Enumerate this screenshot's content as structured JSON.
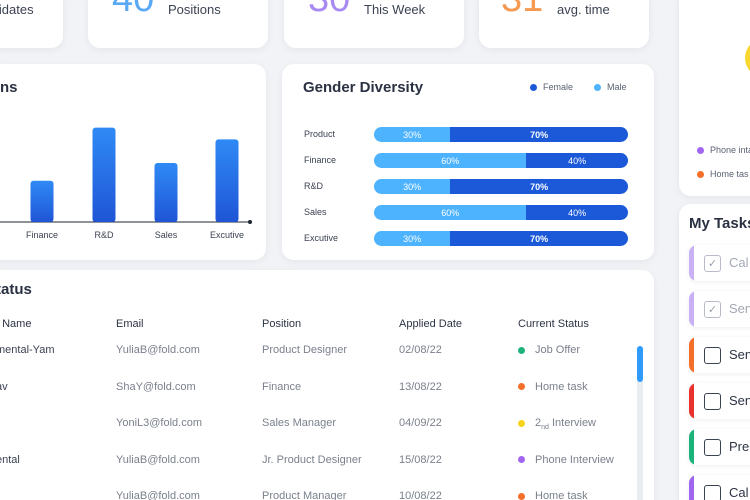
{
  "stats": [
    {
      "number": "",
      "label": "lidates",
      "color": "#3b4252"
    },
    {
      "number": "40",
      "label": "Positions",
      "color": "#5aa9f5"
    },
    {
      "number": "30",
      "label": "This Week",
      "color": "#a98af2"
    },
    {
      "number": "31",
      "label": "avg. time",
      "color": "#f59a52"
    }
  ],
  "bar_chart": {
    "title": "ns",
    "chart_data": {
      "type": "bar",
      "categories": [
        "Finance",
        "R&D",
        "Sales",
        "Excutive"
      ],
      "values": [
        21,
        48,
        30,
        42
      ],
      "ylim": [
        0,
        60
      ]
    }
  },
  "gender_diversity": {
    "title": "Gender Diversity",
    "legend": [
      {
        "label": "Female",
        "color": "#1c59d8"
      },
      {
        "label": "Male",
        "color": "#4db3ff"
      }
    ],
    "chart_data": {
      "type": "bar",
      "categories": [
        "Product",
        "Finance",
        "R&D",
        "Sales",
        "Excutive"
      ],
      "series": [
        {
          "values": [
            30,
            60,
            30,
            60,
            30
          ]
        },
        {
          "values": [
            70,
            40,
            70,
            40,
            70
          ]
        }
      ]
    },
    "labels": {
      "f": [
        "30%",
        "60%",
        "30%",
        "60%",
        "30%"
      ],
      "m": [
        "70%",
        "40%",
        "70%",
        "40%",
        "70%"
      ]
    }
  },
  "status_table": {
    "title": "tatus",
    "headers": [
      "t Name",
      "Email",
      "Position",
      "Applied Date",
      "Current Status"
    ],
    "rows": [
      {
        "name": "mental-Yam",
        "email": "YuliaB@fold.com",
        "position": "Product Designer",
        "date": "02/08/22",
        "status": "Job Offer",
        "status_color": "#1bb37a"
      },
      {
        "name": "av",
        "email": "ShaY@fold.com",
        "position": "Finance",
        "date": "13/08/22",
        "status": "Home task",
        "status_color": "#f46f2a"
      },
      {
        "name": "",
        "email": "YoniL3@fold.com",
        "position": "Sales Manager",
        "date": "04/09/22",
        "status_pre": "2",
        "status_sub": "nd",
        "status": "Interview",
        "status_color": "#f7d31b"
      },
      {
        "name": "ental",
        "email": "YuliaB@fold.com",
        "position": "Jr. Product Designer",
        "date": "15/08/22",
        "status": "Phone Interview",
        "status_color": "#a066ef"
      },
      {
        "name": "",
        "email": "YuliaB@fold.com",
        "position": "Product Manager",
        "date": "10/08/22",
        "status": "Home task",
        "status_color": "#f46f2a"
      }
    ]
  },
  "right_panel": {
    "legend": [
      {
        "label": "Phone inta",
        "color": "#a066ef"
      },
      {
        "label": "Home tas",
        "color": "#f46f2a"
      }
    ],
    "tasks_title": "My Tasks",
    "tasks": [
      {
        "text": "Cal",
        "color": "#c9b1f5",
        "done": true
      },
      {
        "text": "Sen",
        "color": "#c9b1f5",
        "done": true
      },
      {
        "text": "Sen",
        "color": "#f46f2a",
        "done": false
      },
      {
        "text": "Sen",
        "color": "#e9322e",
        "done": false
      },
      {
        "text": "Pre",
        "color": "#1bb37a",
        "done": false
      },
      {
        "text": "Cal",
        "color": "#a066ef",
        "done": false
      }
    ]
  }
}
